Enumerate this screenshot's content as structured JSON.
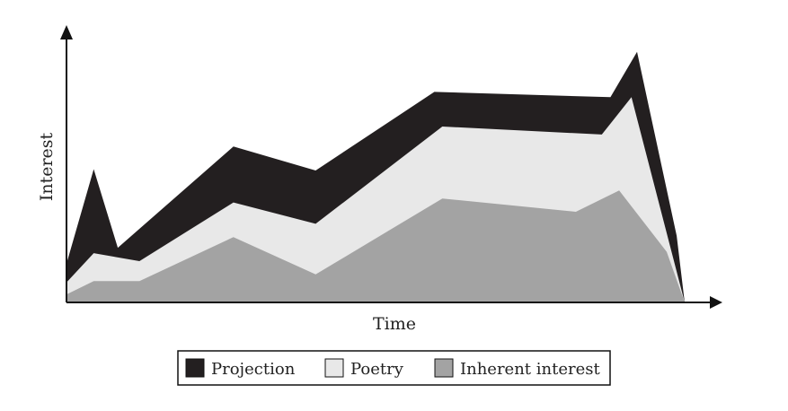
{
  "chart_data": {
    "type": "area",
    "stacked": true,
    "title": "",
    "xlabel": "Time",
    "ylabel": "Interest",
    "xlim": [
      0,
      100
    ],
    "ylim": [
      0,
      100
    ],
    "grid": false,
    "tick_labels": false,
    "legend": {
      "placement": "bottom-center"
    },
    "series": [
      {
        "name": "Inherent interest",
        "color": "#a3a3a3",
        "points": [
          [
            0,
            3
          ],
          [
            4.4,
            8
          ],
          [
            11.8,
            8
          ],
          [
            27,
            24.5
          ],
          [
            40.3,
            10.5
          ],
          [
            60.8,
            39
          ],
          [
            82.4,
            34
          ],
          [
            89.4,
            42
          ],
          [
            97.1,
            19
          ],
          [
            100,
            0
          ]
        ]
      },
      {
        "name": "Poetry",
        "color": "#e8e8e8",
        "points": [
          [
            0,
            7.5
          ],
          [
            4.4,
            18.5
          ],
          [
            11.8,
            15.5
          ],
          [
            27,
            37.5
          ],
          [
            40.3,
            29.5
          ],
          [
            60.8,
            66
          ],
          [
            86.6,
            63
          ],
          [
            91.4,
            77
          ],
          [
            100,
            0
          ]
        ]
      },
      {
        "name": "Projection",
        "color": "#231f20",
        "points": [
          [
            0,
            14.5
          ],
          [
            4.4,
            50
          ],
          [
            8.3,
            20.5
          ],
          [
            27,
            58.5
          ],
          [
            40.3,
            49.5
          ],
          [
            59.5,
            79
          ],
          [
            88,
            77
          ],
          [
            92.3,
            94
          ],
          [
            98.7,
            25
          ],
          [
            100,
            0
          ]
        ]
      }
    ]
  }
}
